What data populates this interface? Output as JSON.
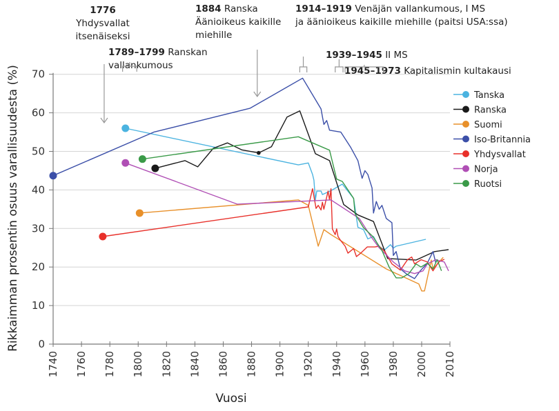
{
  "chart_data": {
    "type": "line",
    "xlabel": "Vuosi",
    "ylabel": "Rikkaimman prosentin osuus varallisuudesta (%)",
    "xticks": [
      1740,
      1760,
      1780,
      1800,
      1820,
      1840,
      1860,
      1880,
      1900,
      1920,
      1940,
      1960,
      1980,
      2000,
      2010
    ],
    "yticks": [
      0,
      10,
      20,
      30,
      40,
      50,
      60,
      70
    ],
    "ylim": [
      0,
      70
    ],
    "xlim": [
      1740,
      2010
    ],
    "grid": "horizontal",
    "legend_position": "right",
    "series": [
      {
        "name": "Tanska",
        "color": "#4bb3e0",
        "points": [
          [
            1791,
            56
          ],
          [
            1913,
            46.5
          ],
          [
            1920,
            47
          ],
          [
            1923,
            44
          ],
          [
            1924,
            42.5
          ],
          [
            1925,
            37.4
          ],
          [
            1926,
            39.7
          ],
          [
            1929,
            39.7
          ],
          [
            1930,
            38.8
          ],
          [
            1936,
            39.8
          ],
          [
            1944,
            41.5
          ],
          [
            1949,
            39.2
          ],
          [
            1952,
            37.8
          ],
          [
            1955,
            30.3
          ],
          [
            1959,
            29.7
          ],
          [
            1962,
            27.3
          ],
          [
            1966,
            27.9
          ],
          [
            1970,
            25.2
          ],
          [
            1974,
            24.5
          ],
          [
            1978,
            25.8
          ],
          [
            1980,
            24.9
          ],
          [
            1982,
            25.4
          ],
          [
            2001.5,
            27.2
          ]
        ]
      },
      {
        "name": "Ranska",
        "color": "#1a1a1a",
        "points": [
          [
            1812,
            45.6
          ],
          [
            1833,
            47.6
          ],
          [
            1842,
            46
          ],
          [
            1853,
            50.8
          ],
          [
            1863,
            52.2
          ],
          [
            1873,
            50.4
          ],
          [
            1885,
            49.6
          ],
          [
            1894,
            51.2
          ],
          [
            1905,
            58.9
          ],
          [
            1914,
            60.5
          ],
          [
            1925,
            49.4
          ],
          [
            1935,
            47.6
          ],
          [
            1945,
            36.2
          ],
          [
            1955,
            33.5
          ],
          [
            1966,
            31.8
          ],
          [
            1976,
            22.2
          ],
          [
            1996,
            21.8
          ],
          [
            2004.6,
            24
          ],
          [
            2009.5,
            24.5
          ]
        ]
      },
      {
        "name": "Suomi",
        "color": "#e8902a",
        "points": [
          [
            1801,
            34
          ],
          [
            1913,
            37.4
          ],
          [
            1920,
            36
          ],
          [
            1927,
            25.4
          ],
          [
            1931,
            29.7
          ],
          [
            1936,
            28.4
          ],
          [
            1975,
            19.5
          ],
          [
            1998,
            15.6
          ],
          [
            2000,
            13.8
          ],
          [
            2001,
            13.8
          ],
          [
            2003.4,
            21.8
          ],
          [
            2004,
            19.5
          ],
          [
            2007.6,
            22.5
          ]
        ]
      },
      {
        "name": "Iso-Britannia",
        "color": "#3b4fa8",
        "points": [
          [
            1740,
            43.7
          ],
          [
            1811,
            55
          ],
          [
            1879,
            61.2
          ],
          [
            1916,
            69
          ],
          [
            1929,
            61
          ],
          [
            1930,
            59
          ],
          [
            1931,
            57
          ],
          [
            1933,
            58
          ],
          [
            1935,
            55.5
          ],
          [
            1943,
            55
          ],
          [
            1950,
            51
          ],
          [
            1955,
            47.6
          ],
          [
            1958,
            43
          ],
          [
            1960,
            45
          ],
          [
            1962,
            44
          ],
          [
            1965,
            40.5
          ],
          [
            1966,
            34
          ],
          [
            1968,
            37
          ],
          [
            1970,
            35
          ],
          [
            1972,
            36
          ],
          [
            1975,
            32.6
          ],
          [
            1979,
            31.5
          ],
          [
            1980,
            23
          ],
          [
            1982,
            24
          ],
          [
            1985,
            19.5
          ],
          [
            1990,
            18
          ],
          [
            1995,
            17
          ],
          [
            1999,
            19
          ],
          [
            2002,
            21
          ],
          [
            2004,
            24
          ],
          [
            2005,
            21
          ]
        ]
      },
      {
        "name": "Yhdysvallat",
        "color": "#e8302a",
        "points": [
          [
            1775,
            27.9
          ],
          [
            1920,
            35.6
          ],
          [
            1923,
            40.3
          ],
          [
            1925.5,
            35.2
          ],
          [
            1927,
            36
          ],
          [
            1929,
            34.8
          ],
          [
            1930,
            36.8
          ],
          [
            1931,
            35
          ],
          [
            1934,
            39.7
          ],
          [
            1935,
            37.4
          ],
          [
            1936,
            40.3
          ],
          [
            1937,
            29.9
          ],
          [
            1939,
            28.4
          ],
          [
            1940,
            29.9
          ],
          [
            1941,
            27.9
          ],
          [
            1942.6,
            27
          ],
          [
            1946,
            25.4
          ],
          [
            1948,
            23.6
          ],
          [
            1952,
            24.8
          ],
          [
            1954,
            22.7
          ],
          [
            1957,
            23.6
          ],
          [
            1961.6,
            25.2
          ],
          [
            1967,
            25.2
          ],
          [
            1970,
            25.4
          ],
          [
            1974,
            24
          ],
          [
            1979,
            20.8
          ],
          [
            1985,
            19.2
          ],
          [
            1990,
            21.9
          ],
          [
            1993,
            22.6
          ],
          [
            1995,
            20.8
          ],
          [
            1999.6,
            21.9
          ],
          [
            2002,
            21.3
          ],
          [
            2004,
            19
          ],
          [
            2006,
            21.3
          ],
          [
            2008,
            22
          ]
        ]
      },
      {
        "name": "Norja",
        "color": "#b04fb5",
        "points": [
          [
            1791,
            47
          ],
          [
            1870,
            36.3
          ],
          [
            1936,
            37.4
          ],
          [
            1956,
            32.6
          ],
          [
            1964,
            28
          ],
          [
            1970,
            25
          ],
          [
            1980,
            21.3
          ],
          [
            1988,
            19
          ],
          [
            1995,
            18.3
          ],
          [
            2000.5,
            19
          ],
          [
            2002,
            20.8
          ],
          [
            2005,
            21.9
          ],
          [
            2008,
            21.3
          ],
          [
            2009.5,
            19
          ]
        ]
      },
      {
        "name": "Ruotsi",
        "color": "#3a9a48",
        "points": [
          [
            1803,
            48
          ],
          [
            1913,
            53.8
          ],
          [
            1935,
            50.3
          ],
          [
            1940,
            42.8
          ],
          [
            1944,
            42.2
          ],
          [
            1952,
            37.8
          ],
          [
            1953,
            33.8
          ],
          [
            1959,
            30.2
          ],
          [
            1965.6,
            27.9
          ],
          [
            1972,
            24.3
          ],
          [
            1977,
            20
          ],
          [
            1982,
            17.2
          ],
          [
            1986,
            17.2
          ],
          [
            1991,
            18.3
          ],
          [
            1996,
            20.8
          ],
          [
            1999.5,
            20
          ],
          [
            2002,
            21
          ],
          [
            2004,
            19.5
          ],
          [
            2005.5,
            21.9
          ],
          [
            2007,
            19
          ]
        ]
      }
    ],
    "annotations": [
      {
        "type": "arrow",
        "year": 1776,
        "lines": [
          {
            "bold": "1776",
            "text": ""
          },
          {
            "bold": "",
            "text": "Yhdysvallat"
          },
          {
            "bold": "",
            "text": "itsenäiseksi"
          }
        ]
      },
      {
        "type": "bracket",
        "from": 1789,
        "to": 1799,
        "lines": [
          {
            "bold": "1789–1799",
            "text": " Ranskan"
          },
          {
            "bold": "",
            "text": "vallankumous"
          }
        ]
      },
      {
        "type": "arrow",
        "year": 1884,
        "lines": [
          {
            "bold": "1884",
            "text": " Ranska"
          },
          {
            "bold": "",
            "text": "Äänioikeus kaikille"
          },
          {
            "bold": "",
            "text": "miehille"
          }
        ]
      },
      {
        "type": "bracket",
        "from": 1914,
        "to": 1919,
        "lines": [
          {
            "bold": "1914–1919",
            "text": " Venäjän vallankumous, I MS"
          },
          {
            "bold": "",
            "text": "ja äänioikeus kaikille miehille (paitsi USA:ssa)"
          }
        ]
      },
      {
        "type": "bracket",
        "from": 1939,
        "to": 1945,
        "lines": [
          {
            "bold": "1939–1945",
            "text": " II MS"
          }
        ]
      },
      {
        "type": "bracket",
        "from": 1945,
        "to": 1973,
        "lines": [
          {
            "bold": "1945–1973",
            "text": " Kapitalismin kultakausi"
          }
        ]
      }
    ]
  }
}
